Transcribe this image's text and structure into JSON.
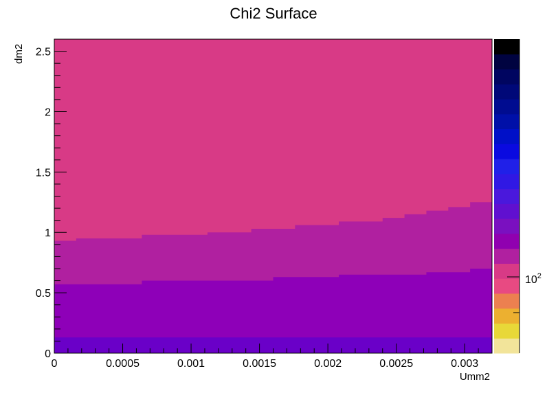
{
  "chart_data": {
    "type": "heatmap",
    "title": "Chi2 Surface",
    "xlabel": "Umm2",
    "ylabel": "dm2",
    "xlim": [
      0,
      0.0032
    ],
    "ylim": [
      0,
      2.6
    ],
    "x_ticks": [
      {
        "v": 0,
        "label": "0"
      },
      {
        "v": 0.0005,
        "label": "0.0005"
      },
      {
        "v": 0.001,
        "label": "0.001"
      },
      {
        "v": 0.0015,
        "label": "0.0015"
      },
      {
        "v": 0.002,
        "label": "0.002"
      },
      {
        "v": 0.0025,
        "label": "0.0025"
      },
      {
        "v": 0.003,
        "label": "0.003"
      }
    ],
    "y_ticks": [
      {
        "v": 0,
        "label": "0"
      },
      {
        "v": 0.5,
        "label": "0.5"
      },
      {
        "v": 1,
        "label": "1"
      },
      {
        "v": 1.5,
        "label": "1.5"
      },
      {
        "v": 2,
        "label": "2"
      },
      {
        "v": 2.5,
        "label": "2.5"
      }
    ],
    "x_bin_edges": [
      0,
      0.00016,
      0.00032,
      0.00048,
      0.00064,
      0.0008,
      0.00096,
      0.00112,
      0.00128,
      0.00144,
      0.0016,
      0.00176,
      0.00192,
      0.00208,
      0.00224,
      0.0024,
      0.00256,
      0.00272,
      0.00288,
      0.00304,
      0.0032
    ],
    "contours": [
      {
        "region": "level-1",
        "color": "#6a00c8",
        "upper": [
          0.13,
          0.13,
          0.13,
          0.13,
          0.13,
          0.13,
          0.13,
          0.13,
          0.13,
          0.13,
          0.13,
          0.13,
          0.13,
          0.13,
          0.13,
          0.13,
          0.13,
          0.13,
          0.13,
          0.13
        ]
      },
      {
        "region": "level-2",
        "color": "#8e00b8",
        "upper": [
          0.57,
          0.57,
          0.57,
          0.57,
          0.6,
          0.6,
          0.6,
          0.6,
          0.6,
          0.6,
          0.63,
          0.63,
          0.63,
          0.65,
          0.65,
          0.65,
          0.65,
          0.67,
          0.67,
          0.7
        ]
      },
      {
        "region": "level-3",
        "color": "#b020a0",
        "upper": [
          0.93,
          0.95,
          0.95,
          0.95,
          0.98,
          0.98,
          0.98,
          1.0,
          1.0,
          1.03,
          1.03,
          1.06,
          1.06,
          1.09,
          1.09,
          1.12,
          1.15,
          1.18,
          1.21,
          1.25
        ]
      },
      {
        "region": "level-4",
        "color": "#d83a86",
        "upper": [
          2.6,
          2.6,
          2.6,
          2.6,
          2.6,
          2.6,
          2.6,
          2.6,
          2.6,
          2.6,
          2.6,
          2.6,
          2.6,
          2.6,
          2.6,
          2.6,
          2.6,
          2.6,
          2.6,
          2.6
        ]
      }
    ],
    "colorbar": {
      "colors": [
        "#f2e49a",
        "#e8d838",
        "#ecb030",
        "#ec8050",
        "#e84a82",
        "#d83a86",
        "#b020a0",
        "#9000b0",
        "#7a10c0",
        "#6010d0",
        "#4a18dc",
        "#3018e4",
        "#2020e8",
        "#0a0ae0",
        "#0010c8",
        "#0010a8",
        "#000c90",
        "#000878",
        "#000560",
        "#000340",
        "#000000"
      ],
      "tick_label_base": "10",
      "tick_label_exp": "2",
      "tick_value": 100,
      "scale": "log"
    },
    "grid": false,
    "legend": "none"
  }
}
